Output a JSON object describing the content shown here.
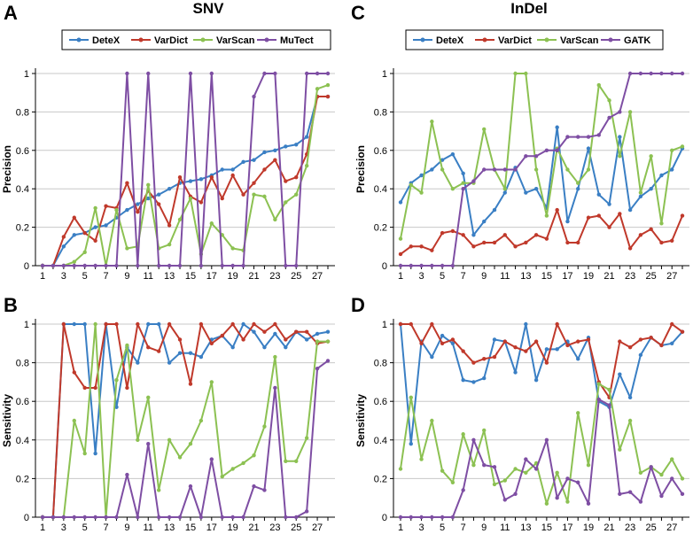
{
  "colors": {
    "blue": "#3a7fc4",
    "red": "#c0392b",
    "green": "#8cc152",
    "purple": "#7e4ea3"
  },
  "chart_data": [
    {
      "panel_label": "A",
      "title": "SNV",
      "type": "line",
      "ylabel": "Precision",
      "ylim": [
        0,
        1
      ],
      "yticks": [
        "0",
        "0.2",
        "0.4",
        "0.6",
        "0.8",
        "1"
      ],
      "xticks": [
        "1",
        "3",
        "5",
        "7",
        "9",
        "11",
        "13",
        "15",
        "17",
        "19",
        "21",
        "23",
        "25",
        "27"
      ],
      "xlim": [
        1,
        28
      ],
      "grid": true,
      "legend": "top",
      "has_legend": true,
      "series": [
        {
          "name": "DeteX",
          "color_key": "blue",
          "values": [
            0,
            0,
            0.1,
            0.16,
            0.17,
            0.2,
            0.21,
            0.25,
            0.29,
            0.32,
            0.35,
            0.37,
            0.4,
            0.43,
            0.44,
            0.45,
            0.47,
            0.5,
            0.5,
            0.54,
            0.55,
            0.59,
            0.6,
            0.62,
            0.63,
            0.67,
            0.88,
            0.88
          ]
        },
        {
          "name": "VarDict",
          "color_key": "red",
          "values": [
            0,
            0,
            0.15,
            0.25,
            0.17,
            0.13,
            0.31,
            0.3,
            0.43,
            0.28,
            0.39,
            0.32,
            0.21,
            0.46,
            0.36,
            0.33,
            0.46,
            0.35,
            0.47,
            0.37,
            0.43,
            0.5,
            0.55,
            0.44,
            0.46,
            0.58,
            0.88,
            0.88
          ]
        },
        {
          "name": "VarScan",
          "color_key": "green",
          "values": [
            0,
            0,
            0,
            0.02,
            0.07,
            0.3,
            0,
            0.29,
            0.09,
            0.1,
            0.42,
            0.09,
            0.11,
            0.24,
            0.35,
            0.06,
            0.22,
            0.16,
            0.09,
            0.08,
            0.37,
            0.36,
            0.24,
            0.33,
            0.37,
            0.52,
            0.92,
            0.94
          ]
        },
        {
          "name": "MuTect",
          "color_key": "purple",
          "values": [
            0,
            0,
            0,
            0,
            0,
            0,
            0,
            0,
            1,
            0,
            1,
            0,
            0,
            0,
            1,
            0,
            1,
            0,
            0,
            0,
            0.88,
            1,
            1,
            0,
            0,
            1,
            1,
            1
          ]
        }
      ]
    },
    {
      "panel_label": "C",
      "title": "InDel",
      "type": "line",
      "ylabel": "Precision",
      "ylim": [
        0,
        1
      ],
      "yticks": [
        "0",
        "0.2",
        "0.4",
        "0.6",
        "0.8",
        "1"
      ],
      "xticks": [
        "1",
        "3",
        "5",
        "7",
        "9",
        "11",
        "13",
        "15",
        "17",
        "19",
        "21",
        "23",
        "25",
        "27"
      ],
      "xlim": [
        1,
        28
      ],
      "grid": true,
      "legend": "top",
      "has_legend": true,
      "series": [
        {
          "name": "DeteX",
          "color_key": "blue",
          "values": [
            0.33,
            0.43,
            0.47,
            0.5,
            0.55,
            0.58,
            0.48,
            0.16,
            0.23,
            0.29,
            0.38,
            0.51,
            0.38,
            0.4,
            0.3,
            0.72,
            0.23,
            0.4,
            0.61,
            0.37,
            0.32,
            0.67,
            0.29,
            0.36,
            0.4,
            0.47,
            0.5,
            0.61
          ]
        },
        {
          "name": "VarDict",
          "color_key": "red",
          "values": [
            0.06,
            0.1,
            0.1,
            0.08,
            0.17,
            0.18,
            0.16,
            0.1,
            0.12,
            0.12,
            0.16,
            0.1,
            0.12,
            0.16,
            0.14,
            0.29,
            0.12,
            0.12,
            0.25,
            0.26,
            0.2,
            0.27,
            0.09,
            0.16,
            0.19,
            0.12,
            0.13,
            0.26
          ]
        },
        {
          "name": "VarScan",
          "color_key": "green",
          "values": [
            0.14,
            0.42,
            0.38,
            0.75,
            0.5,
            0.4,
            0.43,
            0.43,
            0.71,
            0.5,
            0.4,
            1,
            1,
            0.5,
            0.26,
            0.61,
            0.5,
            0.43,
            0.5,
            0.94,
            0.86,
            0.57,
            0.8,
            0.38,
            0.57,
            0.22,
            0.6,
            0.62
          ]
        },
        {
          "name": "GATK",
          "color_key": "purple",
          "values": [
            0,
            0,
            0,
            0,
            0,
            0,
            0.4,
            0.44,
            0.5,
            0.5,
            0.5,
            0.5,
            0.57,
            0.57,
            0.6,
            0.6,
            0.67,
            0.67,
            0.67,
            0.68,
            0.77,
            0.8,
            1,
            1,
            1,
            1,
            1,
            1
          ]
        }
      ]
    },
    {
      "panel_label": "B",
      "title": "",
      "type": "line",
      "ylabel": "Sensitivity",
      "ylim": [
        0,
        1
      ],
      "yticks": [
        "0",
        "0.2",
        "0.4",
        "0.6",
        "0.8",
        "1"
      ],
      "xticks": [
        "1",
        "3",
        "5",
        "7",
        "9",
        "11",
        "13",
        "15",
        "17",
        "19",
        "21",
        "23",
        "25",
        "27"
      ],
      "xlim": [
        1,
        28
      ],
      "grid": true,
      "has_legend": false,
      "series": [
        {
          "name": "DeteX",
          "color_key": "blue",
          "values": [
            0,
            0,
            1,
            1,
            1,
            0.33,
            1,
            0.57,
            0.88,
            0.8,
            1,
            1,
            0.8,
            0.85,
            0.85,
            0.83,
            0.92,
            0.94,
            0.88,
            1,
            0.96,
            0.88,
            0.95,
            0.88,
            0.96,
            0.92,
            0.95,
            0.96
          ]
        },
        {
          "name": "VarDict",
          "color_key": "red",
          "values": [
            0,
            0,
            1,
            0.75,
            0.67,
            0.67,
            1,
            1,
            0.67,
            1,
            0.88,
            0.86,
            1,
            0.92,
            0.69,
            1,
            0.9,
            0.94,
            1,
            0.92,
            1,
            0.96,
            1,
            0.92,
            0.96,
            0.96,
            0.9,
            0.91
          ]
        },
        {
          "name": "VarScan",
          "color_key": "green",
          "values": [
            0,
            0,
            0,
            0.5,
            0.33,
            1,
            0,
            0.71,
            0.89,
            0.4,
            0.62,
            0.14,
            0.4,
            0.31,
            0.38,
            0.5,
            0.7,
            0.21,
            0.25,
            0.28,
            0.32,
            0.47,
            0.83,
            0.29,
            0.29,
            0.41,
            0.91,
            0.91
          ]
        },
        {
          "name": "MuTect",
          "color_key": "purple",
          "values": [
            0,
            0,
            0,
            0,
            0,
            0,
            0,
            0,
            0.22,
            0,
            0.38,
            0,
            0,
            0,
            0.16,
            0,
            0.3,
            0,
            0,
            0,
            0.16,
            0.14,
            0.67,
            0,
            0,
            0.03,
            0.77,
            0.81
          ]
        }
      ]
    },
    {
      "panel_label": "D",
      "title": "",
      "type": "line",
      "ylabel": "Sensitivity",
      "ylim": [
        0,
        1
      ],
      "yticks": [
        "0",
        "0.2",
        "0.4",
        "0.6",
        "0.8",
        "1"
      ],
      "xticks": [
        "1",
        "3",
        "5",
        "7",
        "9",
        "11",
        "13",
        "15",
        "17",
        "19",
        "21",
        "23",
        "25",
        "27"
      ],
      "xlim": [
        1,
        28
      ],
      "grid": true,
      "has_legend": false,
      "series": [
        {
          "name": "DeteX",
          "color_key": "blue",
          "values": [
            1,
            0.38,
            0.91,
            0.83,
            0.94,
            0.9,
            0.71,
            0.7,
            0.72,
            0.92,
            0.91,
            0.75,
            1,
            0.71,
            0.87,
            0.87,
            0.91,
            0.82,
            0.93,
            0.6,
            0.57,
            0.74,
            0.62,
            0.84,
            0.93,
            0.89,
            0.9,
            0.96
          ]
        },
        {
          "name": "VarDict",
          "color_key": "red",
          "values": [
            1,
            1,
            0.9,
            1,
            0.9,
            0.92,
            0.86,
            0.8,
            0.82,
            0.83,
            0.91,
            0.88,
            0.86,
            0.91,
            0.8,
            1,
            0.89,
            0.91,
            0.92,
            0.7,
            0.62,
            0.91,
            0.88,
            0.92,
            0.93,
            0.89,
            1,
            0.96
          ]
        },
        {
          "name": "VarScan",
          "color_key": "green",
          "values": [
            0.25,
            0.62,
            0.3,
            0.5,
            0.24,
            0.18,
            0.43,
            0.27,
            0.45,
            0.17,
            0.19,
            0.25,
            0.23,
            0.28,
            0.07,
            0.23,
            0.08,
            0.54,
            0.27,
            0.69,
            0.66,
            0.35,
            0.5,
            0.23,
            0.26,
            0.22,
            0.3,
            0.2
          ]
        },
        {
          "name": "GATK",
          "color_key": "purple",
          "values": [
            0,
            0,
            0,
            0,
            0,
            0,
            0.14,
            0.4,
            0.27,
            0.26,
            0.09,
            0.12,
            0.3,
            0.25,
            0.4,
            0.1,
            0.2,
            0.18,
            0.07,
            0.61,
            0.58,
            0.12,
            0.13,
            0.08,
            0.26,
            0.11,
            0.2,
            0.12
          ]
        }
      ]
    }
  ]
}
